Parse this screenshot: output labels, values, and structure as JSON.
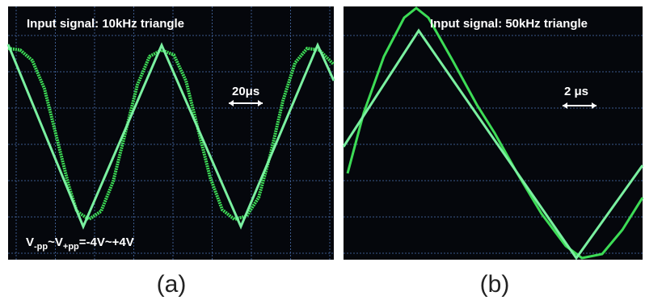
{
  "panels": [
    {
      "title": "Input signal: 10kHz triangle",
      "scale": "20μs",
      "note": {
        "parts": [
          "V",
          "-pp",
          "~V",
          "+pp",
          "=-4V~+4V"
        ]
      },
      "label": "(a)"
    },
    {
      "title": "Input signal: 50kHz triangle",
      "scale": "2 μs",
      "label": "(b)"
    }
  ]
}
